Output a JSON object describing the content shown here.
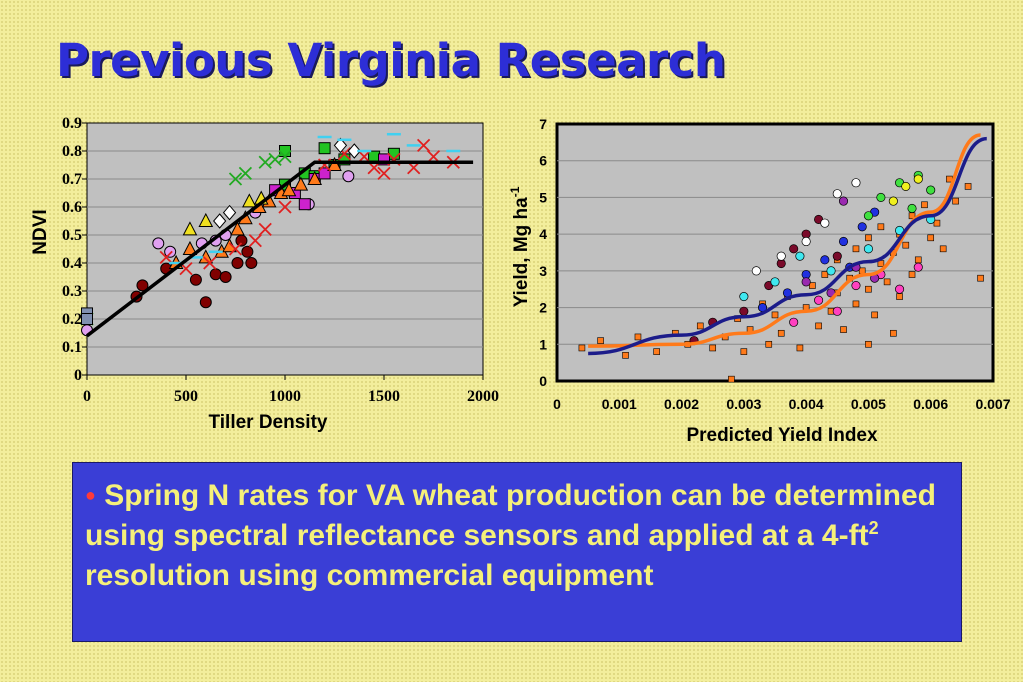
{
  "slide": {
    "title": "Previous Virginia Research",
    "bullet_text_1": "Spring N rates for VA wheat production can be determined using spectral reflectance sensors and applied at a 4-ft",
    "bullet_superscript": "2",
    "bullet_text_2": " resolution using commercial equipment",
    "colors": {
      "title": "#2d2ed6",
      "box": "#3a3ed6",
      "box_text": "#f5f07a",
      "bullet": "#ff3a3a",
      "background": "#f3ee9c"
    }
  },
  "chart_data": [
    {
      "type": "scatter",
      "title": "",
      "xlabel": "Tiller Density",
      "ylabel": "NDVI",
      "xlim": [
        0,
        2000
      ],
      "ylim": [
        0,
        0.9
      ],
      "x_ticks": [
        "0",
        "500",
        "1000",
        "1500",
        "2000"
      ],
      "y_ticks": [
        "0",
        "0.1",
        "0.2",
        "0.3",
        "0.4",
        "0.5",
        "0.6",
        "0.7",
        "0.8",
        "0.9"
      ],
      "grid": true,
      "legend": "none",
      "fit_line": {
        "x": [
          0,
          1150,
          1950
        ],
        "y": [
          0.14,
          0.76,
          0.76
        ]
      },
      "series": [
        {
          "marker": "circle",
          "color": "#800000",
          "points": [
            [
              250,
              0.28
            ],
            [
              280,
              0.32
            ],
            [
              400,
              0.38
            ],
            [
              550,
              0.34
            ],
            [
              600,
              0.26
            ],
            [
              650,
              0.36
            ],
            [
              700,
              0.35
            ],
            [
              760,
              0.4
            ],
            [
              810,
              0.44
            ],
            [
              830,
              0.4
            ],
            [
              780,
              0.48
            ]
          ]
        },
        {
          "marker": "circle",
          "color": "#e0a0f0",
          "points": [
            [
              0,
              0.16
            ],
            [
              360,
              0.47
            ],
            [
              420,
              0.44
            ],
            [
              580,
              0.47
            ],
            [
              650,
              0.48
            ],
            [
              700,
              0.5
            ],
            [
              850,
              0.58
            ],
            [
              1120,
              0.61
            ],
            [
              1320,
              0.71
            ]
          ]
        },
        {
          "marker": "square",
          "color": "#22c422",
          "points": [
            [
              1000,
              0.68
            ],
            [
              1100,
              0.72
            ],
            [
              1150,
              0.71
            ],
            [
              1250,
              0.75
            ],
            [
              1300,
              0.77
            ],
            [
              1450,
              0.78
            ],
            [
              1550,
              0.79
            ],
            [
              1000,
              0.8
            ],
            [
              1200,
              0.81
            ]
          ]
        },
        {
          "marker": "square",
          "color": "#cc22cc",
          "points": [
            [
              1050,
              0.65
            ],
            [
              1150,
              0.7
            ],
            [
              1200,
              0.72
            ],
            [
              1500,
              0.77
            ],
            [
              950,
              0.66
            ],
            [
              1100,
              0.61
            ]
          ]
        },
        {
          "marker": "triangle",
          "color": "#ff7a1a",
          "points": [
            [
              450,
              0.4
            ],
            [
              520,
              0.45
            ],
            [
              600,
              0.42
            ],
            [
              680,
              0.44
            ],
            [
              720,
              0.46
            ],
            [
              760,
              0.52
            ],
            [
              800,
              0.56
            ],
            [
              870,
              0.6
            ],
            [
              920,
              0.62
            ],
            [
              980,
              0.65
            ],
            [
              1020,
              0.66
            ],
            [
              1080,
              0.68
            ],
            [
              1150,
              0.7
            ],
            [
              1250,
              0.75
            ]
          ]
        },
        {
          "marker": "triangle",
          "color": "#f0e020",
          "points": [
            [
              520,
              0.52
            ],
            [
              600,
              0.55
            ],
            [
              820,
              0.62
            ],
            [
              880,
              0.63
            ]
          ]
        },
        {
          "marker": "x",
          "color": "#e02020",
          "points": [
            [
              400,
              0.42
            ],
            [
              500,
              0.38
            ],
            [
              620,
              0.4
            ],
            [
              750,
              0.45
            ],
            [
              850,
              0.48
            ],
            [
              900,
              0.52
            ],
            [
              1000,
              0.6
            ],
            [
              1200,
              0.75
            ],
            [
              1300,
              0.79
            ],
            [
              1400,
              0.78
            ],
            [
              1450,
              0.74
            ],
            [
              1550,
              0.77
            ],
            [
              1650,
              0.74
            ],
            [
              1750,
              0.78
            ],
            [
              1850,
              0.76
            ],
            [
              1700,
              0.82
            ],
            [
              1500,
              0.72
            ]
          ]
        },
        {
          "marker": "x",
          "color": "#22aa22",
          "points": [
            [
              0,
              0.2
            ],
            [
              750,
              0.7
            ],
            [
              800,
              0.72
            ],
            [
              900,
              0.76
            ],
            [
              950,
              0.77
            ],
            [
              1000,
              0.78
            ]
          ]
        },
        {
          "marker": "diamond",
          "color": "#ffffff",
          "points": [
            [
              670,
              0.55
            ],
            [
              720,
              0.58
            ],
            [
              1280,
              0.82
            ],
            [
              1350,
              0.8
            ]
          ]
        },
        {
          "marker": "dash",
          "color": "#40d0f0",
          "points": [
            [
              1200,
              0.85
            ],
            [
              1300,
              0.84
            ],
            [
              1400,
              0.8
            ],
            [
              1550,
              0.86
            ],
            [
              1650,
              0.82
            ],
            [
              1800,
              0.76
            ],
            [
              1850,
              0.8
            ],
            [
              450,
              0.4
            ],
            [
              550,
              0.42
            ],
            [
              650,
              0.44
            ]
          ]
        },
        {
          "marker": "square",
          "color": "#8090b0",
          "points": [
            [
              0,
              0.22
            ],
            [
              0,
              0.2
            ]
          ]
        }
      ]
    },
    {
      "type": "scatter",
      "title": "",
      "xlabel": "Predicted Yield Index",
      "ylabel": "Yield, Mg ha",
      "ylabel_superscript": "-1",
      "xlim": [
        0,
        0.007
      ],
      "ylim": [
        0,
        7
      ],
      "x_ticks": [
        "0",
        "0.001",
        "0.002",
        "0.003",
        "0.004",
        "0.005",
        "0.006",
        "0.007"
      ],
      "y_ticks": [
        "0",
        "1",
        "2",
        "3",
        "4",
        "5",
        "6",
        "7"
      ],
      "grid": true,
      "legend": "none",
      "curves": [
        {
          "color": "#ff7a1a",
          "x": [
            0.0005,
            0.002,
            0.003,
            0.004,
            0.005,
            0.006,
            0.0068
          ],
          "y": [
            0.95,
            1.0,
            1.3,
            1.9,
            2.9,
            4.6,
            6.7
          ]
        },
        {
          "color": "#1c1c8a",
          "x": [
            0.0005,
            0.002,
            0.003,
            0.004,
            0.005,
            0.006,
            0.0069
          ],
          "y": [
            0.75,
            1.25,
            1.75,
            2.35,
            3.25,
            4.5,
            6.6
          ]
        }
      ],
      "series": [
        {
          "marker": "square",
          "color": "#ff7a1a",
          "points": [
            [
              0.0004,
              0.9
            ],
            [
              0.0007,
              1.1
            ],
            [
              0.0011,
              0.7
            ],
            [
              0.0013,
              1.2
            ],
            [
              0.0016,
              0.8
            ],
            [
              0.0019,
              1.3
            ],
            [
              0.0021,
              1.0
            ],
            [
              0.0023,
              1.5
            ],
            [
              0.0025,
              0.9
            ],
            [
              0.0027,
              1.2
            ],
            [
              0.0029,
              1.7
            ],
            [
              0.003,
              0.8
            ],
            [
              0.0031,
              1.4
            ],
            [
              0.0033,
              2.1
            ],
            [
              0.0034,
              1.0
            ],
            [
              0.0035,
              1.8
            ],
            [
              0.0036,
              1.3
            ],
            [
              0.0037,
              2.3
            ],
            [
              0.0038,
              1.6
            ],
            [
              0.0039,
              0.9
            ],
            [
              0.004,
              2.0
            ],
            [
              0.0041,
              2.6
            ],
            [
              0.0042,
              1.5
            ],
            [
              0.0043,
              2.9
            ],
            [
              0.0044,
              1.9
            ],
            [
              0.0045,
              2.4
            ],
            [
              0.0045,
              3.3
            ],
            [
              0.0046,
              1.4
            ],
            [
              0.0047,
              2.8
            ],
            [
              0.0048,
              3.6
            ],
            [
              0.0048,
              2.1
            ],
            [
              0.0049,
              3.0
            ],
            [
              0.005,
              2.5
            ],
            [
              0.005,
              3.9
            ],
            [
              0.0051,
              1.8
            ],
            [
              0.0052,
              3.2
            ],
            [
              0.0052,
              4.2
            ],
            [
              0.0053,
              2.7
            ],
            [
              0.0054,
              3.5
            ],
            [
              0.0054,
              1.3
            ],
            [
              0.0055,
              4.0
            ],
            [
              0.0055,
              2.3
            ],
            [
              0.0056,
              3.7
            ],
            [
              0.0057,
              4.5
            ],
            [
              0.0057,
              2.9
            ],
            [
              0.0058,
              3.3
            ],
            [
              0.0059,
              4.8
            ],
            [
              0.006,
              3.9
            ],
            [
              0.006,
              5.2
            ],
            [
              0.0061,
              4.3
            ],
            [
              0.0062,
              3.6
            ],
            [
              0.0063,
              5.5
            ],
            [
              0.0064,
              4.9
            ],
            [
              0.0066,
              5.3
            ],
            [
              0.0068,
              2.8
            ],
            [
              0.0028,
              0.05
            ],
            [
              0.005,
              1.0
            ]
          ]
        },
        {
          "marker": "circle",
          "color": "#7a0a2a",
          "points": [
            [
              0.0022,
              1.1
            ],
            [
              0.0025,
              1.6
            ],
            [
              0.003,
              1.9
            ],
            [
              0.0034,
              2.6
            ],
            [
              0.0036,
              3.2
            ],
            [
              0.0038,
              3.6
            ],
            [
              0.004,
              4.0
            ],
            [
              0.0042,
              4.4
            ],
            [
              0.0045,
              3.4
            ]
          ]
        },
        {
          "marker": "circle",
          "color": "#ff40c0",
          "points": [
            [
              0.0038,
              1.6
            ],
            [
              0.0042,
              2.2
            ],
            [
              0.0045,
              1.9
            ],
            [
              0.0048,
              2.6
            ],
            [
              0.0052,
              2.9
            ],
            [
              0.0055,
              2.5
            ],
            [
              0.0058,
              3.1
            ]
          ]
        },
        {
          "marker": "circle",
          "color": "#2030e0",
          "points": [
            [
              0.0033,
              2.0
            ],
            [
              0.0037,
              2.4
            ],
            [
              0.004,
              2.9
            ],
            [
              0.0043,
              3.3
            ],
            [
              0.0046,
              3.8
            ],
            [
              0.0049,
              4.2
            ],
            [
              0.0051,
              4.6
            ],
            [
              0.0047,
              3.1
            ]
          ]
        },
        {
          "marker": "circle",
          "color": "#40e8f0",
          "points": [
            [
              0.003,
              2.3
            ],
            [
              0.0035,
              2.7
            ],
            [
              0.0039,
              3.4
            ],
            [
              0.0044,
              3.0
            ],
            [
              0.005,
              3.6
            ],
            [
              0.0055,
              4.1
            ],
            [
              0.006,
              4.4
            ]
          ]
        },
        {
          "marker": "circle",
          "color": "#40e040",
          "points": [
            [
              0.0055,
              5.4
            ],
            [
              0.0058,
              5.6
            ],
            [
              0.006,
              5.2
            ],
            [
              0.0057,
              4.7
            ],
            [
              0.0052,
              5.0
            ],
            [
              0.005,
              4.5
            ]
          ]
        },
        {
          "marker": "circle",
          "color": "#f0f020",
          "points": [
            [
              0.0056,
              5.3
            ],
            [
              0.0058,
              5.5
            ],
            [
              0.0054,
              4.9
            ]
          ]
        },
        {
          "marker": "circle",
          "color": "#ffffff",
          "points": [
            [
              0.0045,
              5.1
            ],
            [
              0.0048,
              5.4
            ],
            [
              0.0043,
              4.3
            ],
            [
              0.004,
              3.8
            ],
            [
              0.0036,
              3.4
            ],
            [
              0.0032,
              3.0
            ]
          ]
        },
        {
          "marker": "circle",
          "color": "#9a2ab0",
          "points": [
            [
              0.004,
              2.7
            ],
            [
              0.0044,
              2.4
            ],
            [
              0.0048,
              3.1
            ],
            [
              0.0051,
              2.8
            ],
            [
              0.0046,
              4.9
            ]
          ]
        }
      ]
    }
  ]
}
